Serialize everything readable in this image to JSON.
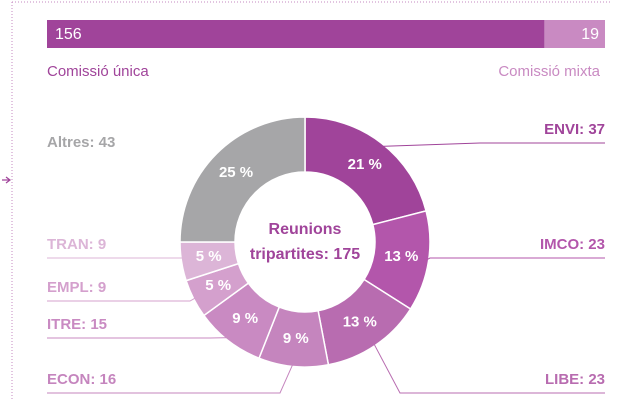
{
  "chart_data": [
    {
      "type": "stacked_bar",
      "series": [
        {
          "name": "Comissió única",
          "color": "#a0449a",
          "values": [
            156
          ]
        },
        {
          "name": "Comissió mixta",
          "color": "#c98ac2",
          "values": [
            19
          ]
        }
      ],
      "xlim": [
        0,
        175
      ]
    },
    {
      "type": "donut",
      "center_label": [
        "Reunions",
        "tripartites: 175"
      ],
      "categories": [
        "ENVI: 37",
        "IMCO: 23",
        "LIBE: 23",
        "ECON: 16",
        "ITRE: 15",
        "EMPL: 9",
        "TRAN: 9",
        "Altres: 43"
      ],
      "values": [
        21,
        13,
        13,
        9,
        9,
        5,
        5,
        25
      ],
      "value_labels": [
        "21 %",
        "13 %",
        "13 %",
        "9 %",
        "9 %",
        "5 %",
        "5 %",
        "25 %"
      ],
      "colors": [
        "#a0449a",
        "#b356ab",
        "#b86cb0",
        "#c585be",
        "#c98ac2",
        "#d4a0cd",
        "#dcb5d7",
        "#a6a6a8"
      ]
    }
  ]
}
